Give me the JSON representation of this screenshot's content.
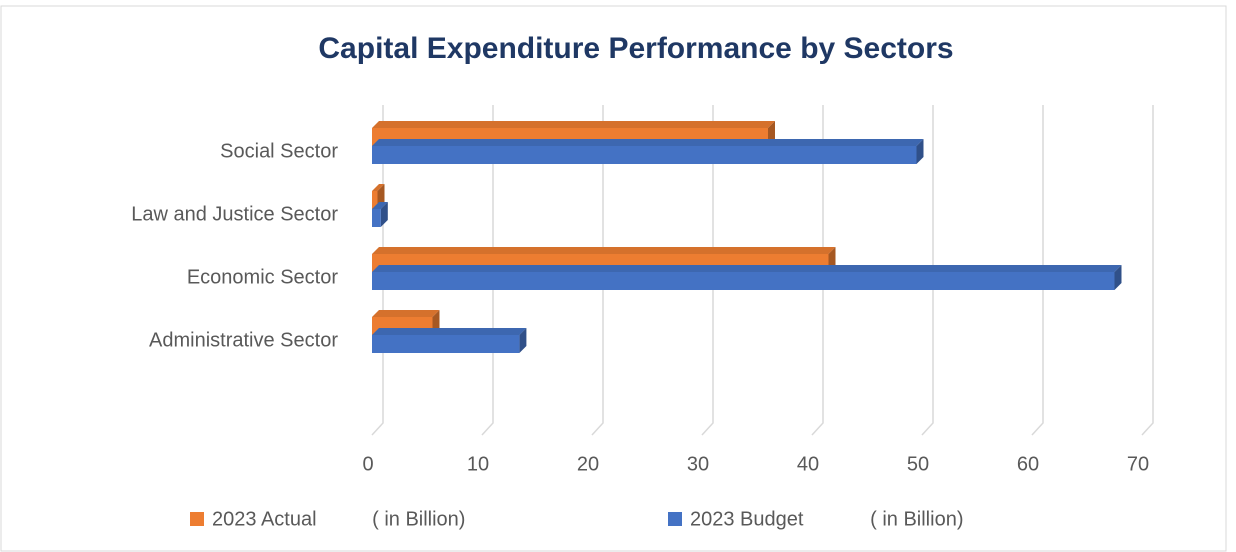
{
  "chart_data": {
    "type": "bar",
    "orientation": "horizontal",
    "title": "Capital Expenditure Performance by Sectors",
    "categories": [
      "Social Sector",
      "Law and Justice Sector",
      "Economic Sector",
      "Administrative Sector"
    ],
    "series": [
      {
        "name": "2023 Actual          ( in Billion)",
        "color": "#ed7d31",
        "values": [
          36,
          0.5,
          41.5,
          5.5
        ]
      },
      {
        "name": "2023 Budget            ( in Billion)",
        "color": "#4472c4",
        "values": [
          49.5,
          0.8,
          67.5,
          13.4
        ]
      }
    ],
    "xlim": [
      0,
      70
    ],
    "xticks": [
      0,
      10,
      20,
      30,
      40,
      50,
      60,
      70
    ],
    "grid": true,
    "legend": "bottom"
  }
}
